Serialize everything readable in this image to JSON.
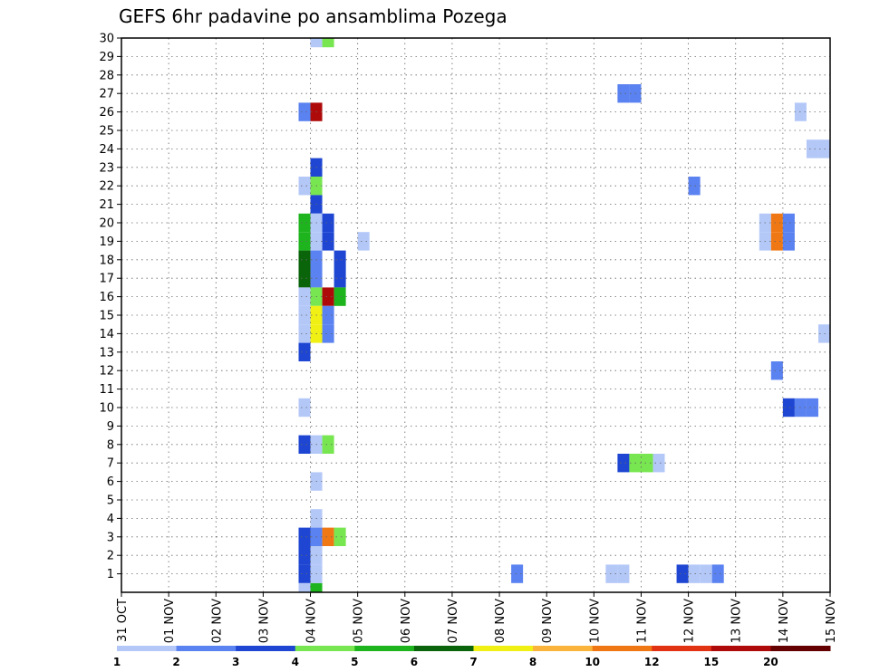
{
  "chart_data": {
    "type": "heatmap",
    "title": "GEFS 6hr padavine po ansamblima Pozega",
    "xlabel": "",
    "ylabel": "",
    "x_tick_labels": [
      "31 OCT",
      "01 NOV",
      "02 NOV",
      "03 NOV",
      "04 NOV",
      "05 NOV",
      "06 NOV",
      "07 NOV",
      "08 NOV",
      "09 NOV",
      "10 NOV",
      "11 NOV",
      "12 NOV",
      "13 NOV",
      "14 NOV",
      "15 NOV"
    ],
    "y_tick_labels": [
      "1",
      "2",
      "3",
      "4",
      "5",
      "6",
      "7",
      "8",
      "9",
      "10",
      "11",
      "12",
      "13",
      "14",
      "15",
      "16",
      "17",
      "18",
      "19",
      "20",
      "21",
      "22",
      "23",
      "24",
      "25",
      "26",
      "27",
      "28",
      "29",
      "30"
    ],
    "x_range_days": [
      0,
      15
    ],
    "y_range": [
      0,
      30
    ],
    "grid": true,
    "cell_width_days": 0.25,
    "colorbar": {
      "labels": [
        "1",
        "2",
        "3",
        "4",
        "5",
        "6",
        "7",
        "8",
        "10",
        "12",
        "15",
        "20"
      ],
      "colors": [
        "#b4c8f8",
        "#5a82f0",
        "#1e46d2",
        "#78e650",
        "#1eb41e",
        "#0a640a",
        "#f0f014",
        "#fab43c",
        "#f07814",
        "#e13214",
        "#af0a0a",
        "#640000"
      ]
    },
    "cells": [
      {
        "x": 3.75,
        "y": 0,
        "level": 1
      },
      {
        "x": 4.0,
        "y": 0,
        "level": 5
      },
      {
        "x": 4.0,
        "y": 30,
        "level": 1
      },
      {
        "x": 4.25,
        "y": 30,
        "level": 4
      },
      {
        "x": 3.75,
        "y": 26,
        "level": 2
      },
      {
        "x": 4.0,
        "y": 26,
        "level": 11
      },
      {
        "x": 4.0,
        "y": 23,
        "level": 3
      },
      {
        "x": 3.75,
        "y": 22,
        "level": 1
      },
      {
        "x": 4.0,
        "y": 22,
        "level": 4
      },
      {
        "x": 4.0,
        "y": 21,
        "level": 3
      },
      {
        "x": 3.75,
        "y": 20,
        "level": 5
      },
      {
        "x": 4.0,
        "y": 20,
        "level": 1
      },
      {
        "x": 4.25,
        "y": 20,
        "level": 3
      },
      {
        "x": 3.75,
        "y": 19,
        "level": 5
      },
      {
        "x": 4.0,
        "y": 19,
        "level": 1
      },
      {
        "x": 4.25,
        "y": 19,
        "level": 3
      },
      {
        "x": 3.75,
        "y": 18,
        "level": 6
      },
      {
        "x": 4.0,
        "y": 18,
        "level": 2
      },
      {
        "x": 4.5,
        "y": 18,
        "level": 3
      },
      {
        "x": 3.75,
        "y": 17,
        "level": 6
      },
      {
        "x": 4.0,
        "y": 17,
        "level": 2
      },
      {
        "x": 4.5,
        "y": 17,
        "level": 3
      },
      {
        "x": 3.75,
        "y": 16,
        "level": 1
      },
      {
        "x": 4.0,
        "y": 16,
        "level": 4
      },
      {
        "x": 4.25,
        "y": 16,
        "level": 11
      },
      {
        "x": 4.5,
        "y": 16,
        "level": 5
      },
      {
        "x": 3.75,
        "y": 15,
        "level": 1
      },
      {
        "x": 4.0,
        "y": 15,
        "level": 7
      },
      {
        "x": 4.25,
        "y": 15,
        "level": 2
      },
      {
        "x": 3.75,
        "y": 14,
        "level": 1
      },
      {
        "x": 4.0,
        "y": 14,
        "level": 7
      },
      {
        "x": 4.25,
        "y": 14,
        "level": 2
      },
      {
        "x": 3.75,
        "y": 13,
        "level": 3
      },
      {
        "x": 3.75,
        "y": 10,
        "level": 1
      },
      {
        "x": 3.75,
        "y": 8,
        "level": 3
      },
      {
        "x": 4.0,
        "y": 8,
        "level": 1
      },
      {
        "x": 4.25,
        "y": 8,
        "level": 4
      },
      {
        "x": 4.0,
        "y": 6,
        "level": 1
      },
      {
        "x": 4.0,
        "y": 4,
        "level": 1
      },
      {
        "x": 3.75,
        "y": 3,
        "level": 3
      },
      {
        "x": 4.0,
        "y": 3,
        "level": 2
      },
      {
        "x": 4.25,
        "y": 3,
        "level": 9
      },
      {
        "x": 4.5,
        "y": 3,
        "level": 4
      },
      {
        "x": 3.75,
        "y": 2,
        "level": 3
      },
      {
        "x": 4.0,
        "y": 2,
        "level": 1
      },
      {
        "x": 3.75,
        "y": 1,
        "level": 3
      },
      {
        "x": 4.0,
        "y": 1,
        "level": 1
      },
      {
        "x": 5.0,
        "y": 19,
        "level": 1
      },
      {
        "x": 8.25,
        "y": 1,
        "level": 2
      },
      {
        "x": 10.25,
        "y": 1,
        "level": 1
      },
      {
        "x": 10.5,
        "y": 1,
        "level": 1
      },
      {
        "x": 10.5,
        "y": 27,
        "level": 2
      },
      {
        "x": 10.75,
        "y": 27,
        "level": 2
      },
      {
        "x": 10.5,
        "y": 7,
        "level": 3
      },
      {
        "x": 10.75,
        "y": 7,
        "level": 4
      },
      {
        "x": 11.0,
        "y": 7,
        "level": 4
      },
      {
        "x": 11.25,
        "y": 7,
        "level": 1
      },
      {
        "x": 11.75,
        "y": 1,
        "level": 3
      },
      {
        "x": 12.0,
        "y": 1,
        "level": 1
      },
      {
        "x": 12.25,
        "y": 1,
        "level": 1
      },
      {
        "x": 12.5,
        "y": 1,
        "level": 2
      },
      {
        "x": 12.0,
        "y": 22,
        "level": 2
      },
      {
        "x": 13.5,
        "y": 20,
        "level": 1
      },
      {
        "x": 13.75,
        "y": 20,
        "level": 9
      },
      {
        "x": 14.0,
        "y": 20,
        "level": 2
      },
      {
        "x": 13.5,
        "y": 19,
        "level": 1
      },
      {
        "x": 13.75,
        "y": 19,
        "level": 9
      },
      {
        "x": 14.0,
        "y": 19,
        "level": 2
      },
      {
        "x": 13.75,
        "y": 12,
        "level": 2
      },
      {
        "x": 14.0,
        "y": 10,
        "level": 3
      },
      {
        "x": 14.25,
        "y": 10,
        "level": 2
      },
      {
        "x": 14.5,
        "y": 10,
        "level": 2
      },
      {
        "x": 14.25,
        "y": 26,
        "level": 1
      },
      {
        "x": 14.5,
        "y": 24,
        "level": 1
      },
      {
        "x": 14.75,
        "y": 24,
        "level": 1
      },
      {
        "x": 14.75,
        "y": 14,
        "level": 1
      }
    ]
  }
}
